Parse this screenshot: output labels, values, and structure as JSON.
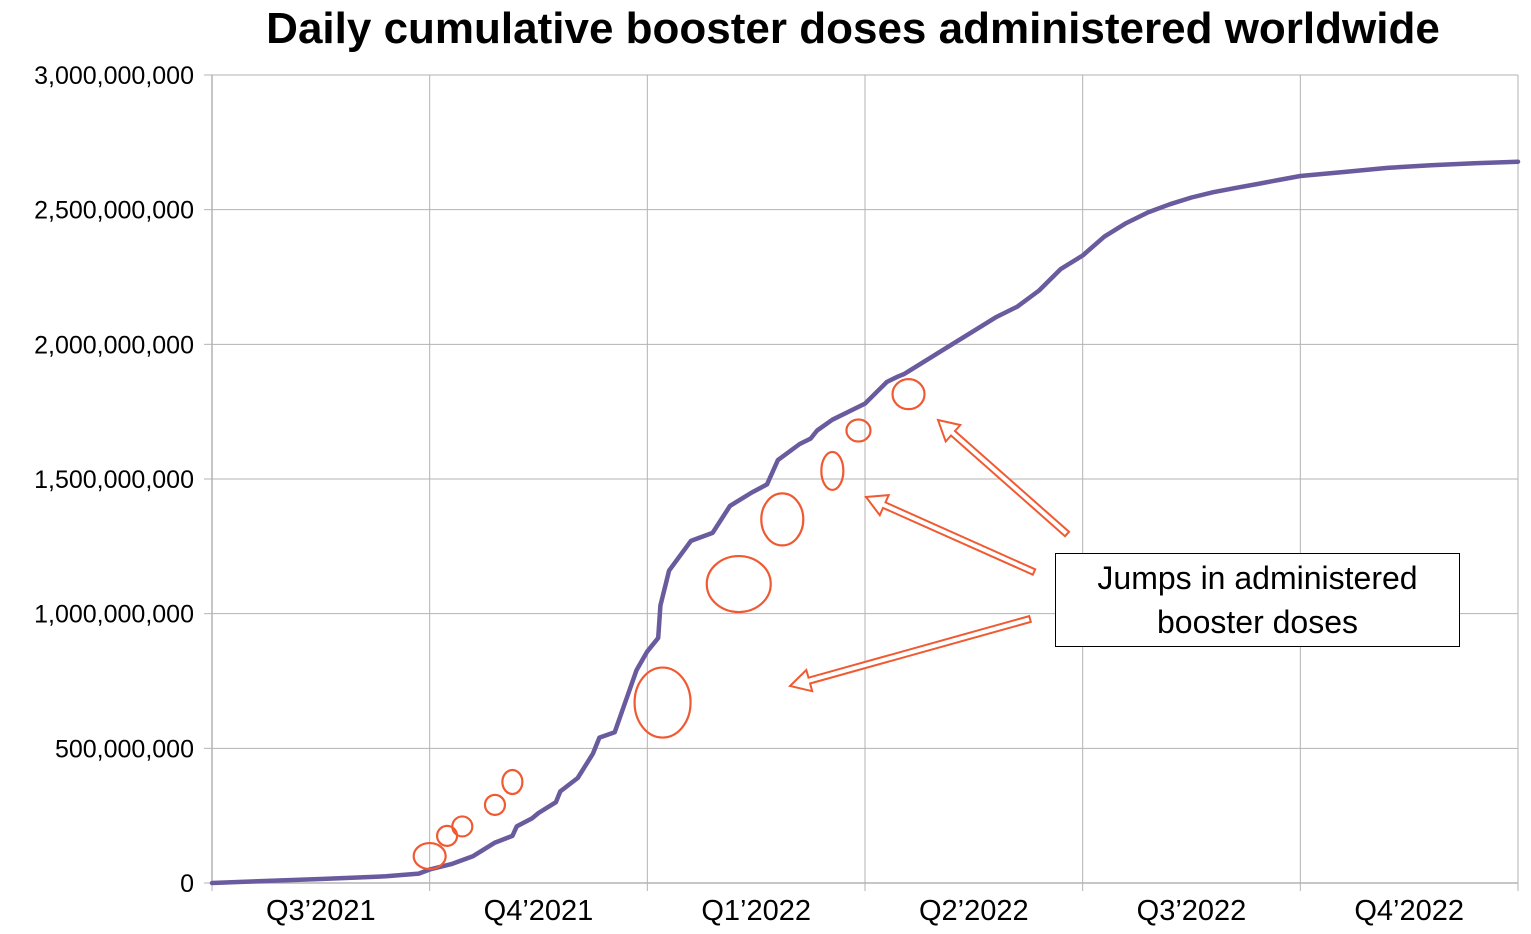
{
  "chart_data": {
    "type": "line",
    "title": "Daily cumulative booster doses administered worldwide",
    "xlabel": "",
    "ylabel": "",
    "ylim": [
      0,
      3000000000
    ],
    "y_ticks": [
      {
        "value": 0,
        "label": "0"
      },
      {
        "value": 500000000,
        "label": "500,000,000"
      },
      {
        "value": 1000000000,
        "label": "1,000,000,000"
      },
      {
        "value": 1500000000,
        "label": "1,500,000,000"
      },
      {
        "value": 2000000000,
        "label": "2,000,000,000"
      },
      {
        "value": 2500000000,
        "label": "2,500,000,000"
      },
      {
        "value": 3000000000,
        "label": "3,000,000,000"
      }
    ],
    "x_categories": [
      "Q3’2021",
      "Q4’2021",
      "Q1’2022",
      "Q2’2022",
      "Q3’2022",
      "Q4’2022"
    ],
    "xlim_quarters": [
      0,
      6
    ],
    "grid": true,
    "line_color": "#6a5b9e",
    "highlight_color": "#f05a32",
    "series": [
      {
        "x": [
          0,
          0.15,
          0.5,
          0.8,
          0.95,
          1.0,
          1.1,
          1.2,
          1.3,
          1.38,
          1.4,
          1.47,
          1.5,
          1.58,
          1.6,
          1.68,
          1.75,
          1.78,
          1.85,
          1.95,
          2.0,
          2.05,
          2.06,
          2.1,
          2.2,
          2.3,
          2.38,
          2.4,
          2.48,
          2.55,
          2.6,
          2.7,
          2.75,
          2.78,
          2.85,
          2.95,
          3.0,
          3.05,
          3.1,
          3.15,
          3.18,
          3.2,
          3.3,
          3.4,
          3.5,
          3.6,
          3.7,
          3.8,
          3.9,
          4.0,
          4.1,
          4.2,
          4.3,
          4.4,
          4.5,
          4.6,
          4.7,
          4.8,
          4.9,
          5.0,
          5.2,
          5.4,
          5.6,
          5.8,
          6.0
        ],
        "y": [
          0,
          5000000,
          15000000,
          25000000,
          35000000,
          50000000,
          70000000,
          100000000,
          150000000,
          175000000,
          210000000,
          240000000,
          260000000,
          300000000,
          340000000,
          390000000,
          480000000,
          540000000,
          560000000,
          790000000,
          860000000,
          910000000,
          1030000000,
          1160000000,
          1270000000,
          1300000000,
          1400000000,
          1410000000,
          1450000000,
          1480000000,
          1570000000,
          1630000000,
          1650000000,
          1680000000,
          1720000000,
          1760000000,
          1780000000,
          1820000000,
          1860000000,
          1880000000,
          1890000000,
          1900000000,
          1950000000,
          2000000000,
          2050000000,
          2100000000,
          2140000000,
          2200000000,
          2280000000,
          2330000000,
          2400000000,
          2450000000,
          2490000000,
          2520000000,
          2545000000,
          2565000000,
          2580000000,
          2595000000,
          2610000000,
          2625000000,
          2640000000,
          2655000000,
          2665000000,
          2672000000,
          2678000000
        ]
      }
    ],
    "highlighted_jumps": [
      {
        "x": 1.0,
        "y": 100000000
      },
      {
        "x": 1.08,
        "y": 175000000
      },
      {
        "x": 1.15,
        "y": 210000000
      },
      {
        "x": 1.3,
        "y": 290000000
      },
      {
        "x": 1.38,
        "y": 375000000
      },
      {
        "x": 2.07,
        "y": 670000000
      },
      {
        "x": 2.42,
        "y": 1110000000
      },
      {
        "x": 2.62,
        "y": 1350000000
      },
      {
        "x": 2.85,
        "y": 1530000000
      },
      {
        "x": 2.97,
        "y": 1680000000
      },
      {
        "x": 3.2,
        "y": 1815000000
      }
    ],
    "annotation": {
      "text": "Jumps in administered booster doses",
      "arrow_color": "#f05a32"
    }
  }
}
